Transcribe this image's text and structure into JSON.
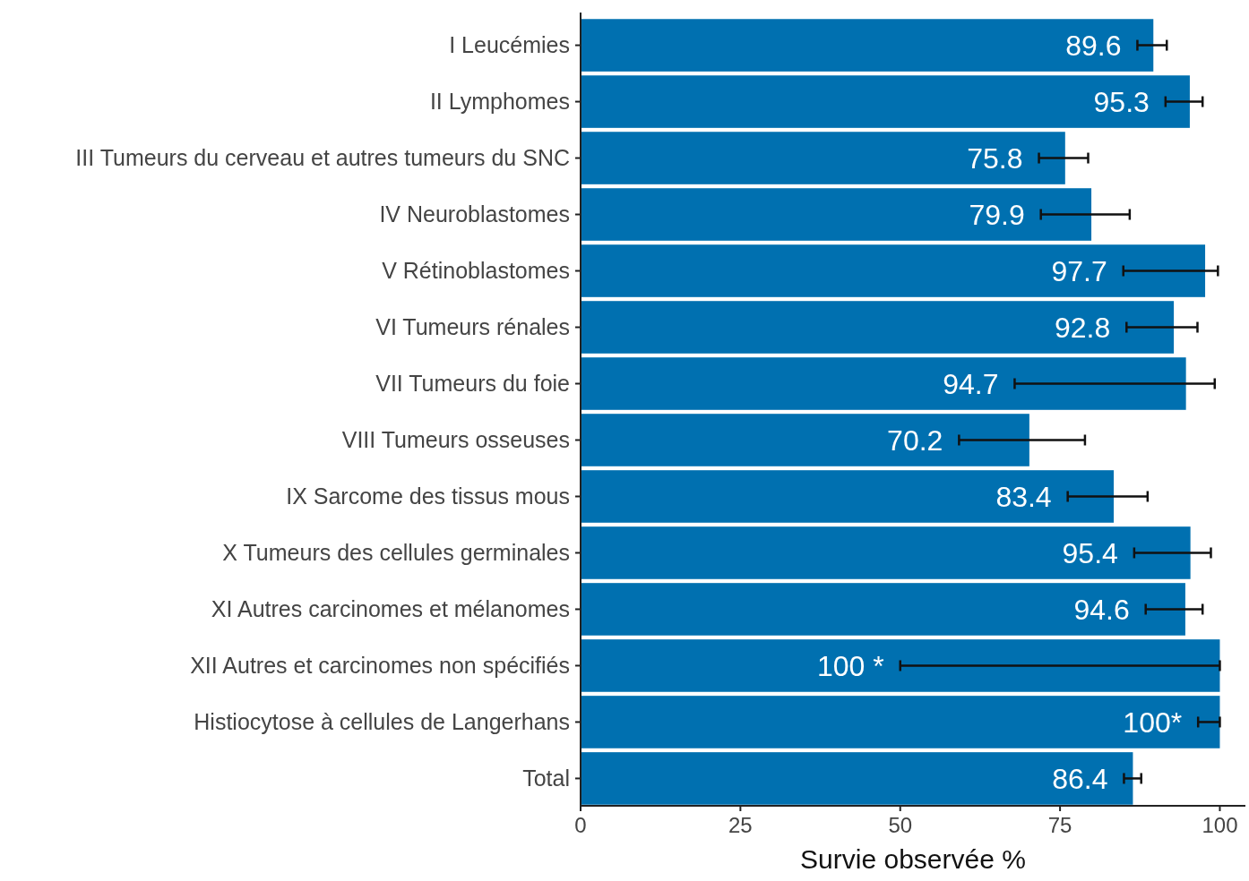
{
  "chart_data": {
    "type": "bar",
    "orientation": "horizontal",
    "xlabel": "Survie observée %",
    "categories": [
      "I Leucémies",
      "II Lymphomes",
      "III Tumeurs du cerveau et autres tumeurs du SNC",
      "IV Neuroblastomes",
      "V Rétinoblastomes",
      "VI Tumeurs rénales",
      "VII Tumeurs du foie",
      "VIII Tumeurs osseuses",
      "IX Sarcome des tissus mous",
      "X Tumeurs des cellules germinales",
      "XI Autres carcinomes et mélanomes",
      "XII Autres et carcinomes non spécifiés",
      "Histiocytose à cellules de Langerhans",
      "Total"
    ],
    "values": [
      89.6,
      95.3,
      75.8,
      79.9,
      97.7,
      92.8,
      94.7,
      70.2,
      83.4,
      95.4,
      94.6,
      100,
      100,
      86.4
    ],
    "value_labels": [
      "89.6",
      "95.3",
      "75.8",
      "79.9",
      "97.7",
      "92.8",
      "94.7",
      "70.2",
      "83.4",
      "95.4",
      "94.6",
      "100 *",
      "100*",
      "86.4"
    ],
    "errors": [
      [
        87.1,
        91.7
      ],
      [
        91.5,
        97.3
      ],
      [
        71.7,
        79.4
      ],
      [
        72.0,
        85.9
      ],
      [
        84.9,
        99.7
      ],
      [
        85.4,
        96.5
      ],
      [
        67.9,
        99.2
      ],
      [
        59.2,
        78.9
      ],
      [
        76.2,
        88.7
      ],
      [
        86.6,
        98.6
      ],
      [
        88.4,
        97.3
      ],
      [
        50,
        100
      ],
      [
        96.6,
        100
      ],
      [
        85.0,
        87.7
      ]
    ],
    "color": "#0070b0",
    "xlim": [
      0,
      104
    ],
    "xticks": [
      0,
      25,
      50,
      75,
      100
    ],
    "grid": false
  }
}
